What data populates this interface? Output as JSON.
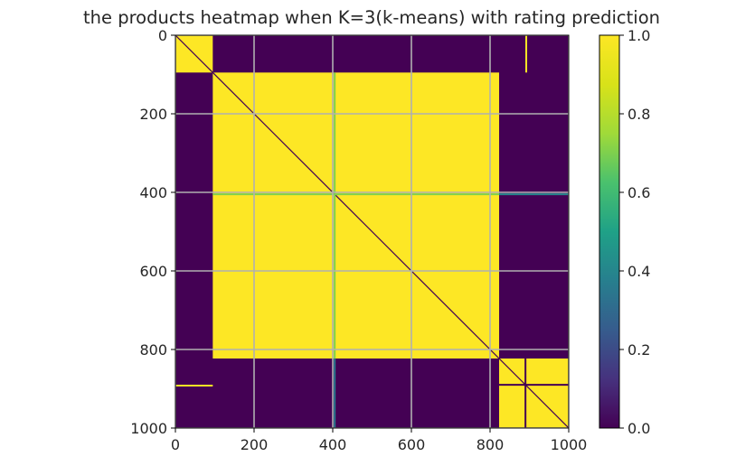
{
  "chart_data": {
    "type": "heatmap",
    "title": "the products heatmap when K=3(k-means) with rating prediction",
    "xlabel": "",
    "ylabel": "",
    "xlim": [
      0,
      1000
    ],
    "ylim": [
      1000,
      0
    ],
    "x_ticks": [
      "0",
      "200",
      "400",
      "600",
      "800",
      "1000"
    ],
    "y_ticks": [
      "0",
      "200",
      "400",
      "600",
      "800",
      "1000"
    ],
    "colorbar": {
      "range": [
        0,
        1
      ],
      "ticks": [
        "0.0",
        "0.2",
        "0.4",
        "0.6",
        "0.8",
        "1.0"
      ],
      "colormap": "viridis"
    },
    "grid": true,
    "background_value": 0.0,
    "blocks": [
      {
        "x0": 0,
        "x1": 95,
        "y0": 0,
        "y1": 95,
        "value": 1.0
      },
      {
        "x0": 95,
        "x1": 823,
        "y0": 95,
        "y1": 823,
        "value": 1.0
      },
      {
        "x0": 823,
        "x1": 1000,
        "y0": 823,
        "y1": 1000,
        "value": 1.0
      }
    ],
    "lines": [
      {
        "orientation": "diagonal",
        "value": 0.0
      },
      {
        "orientation": "vertical",
        "at": 405,
        "from": 95,
        "to": 823,
        "value": 0.7
      },
      {
        "orientation": "horizontal",
        "at": 405,
        "from": 95,
        "to": 823,
        "value": 0.7
      },
      {
        "orientation": "vertical",
        "at": 405,
        "from": 823,
        "to": 1000,
        "value": 0.35
      },
      {
        "orientation": "horizontal",
        "at": 405,
        "from": 823,
        "to": 1000,
        "value": 0.4
      },
      {
        "orientation": "vertical",
        "at": 892,
        "from": 0,
        "to": 95,
        "value": 1.0
      },
      {
        "orientation": "horizontal",
        "at": 892,
        "from": 0,
        "to": 95,
        "value": 1.0
      },
      {
        "orientation": "vertical",
        "at": 890,
        "from": 823,
        "to": 1000,
        "value": 0.0
      },
      {
        "orientation": "horizontal",
        "at": 890,
        "from": 823,
        "to": 1000,
        "value": 0.0
      }
    ],
    "colors": {
      "low": "#440154",
      "high": "#fde725",
      "grid": "#b0b0b0"
    }
  }
}
